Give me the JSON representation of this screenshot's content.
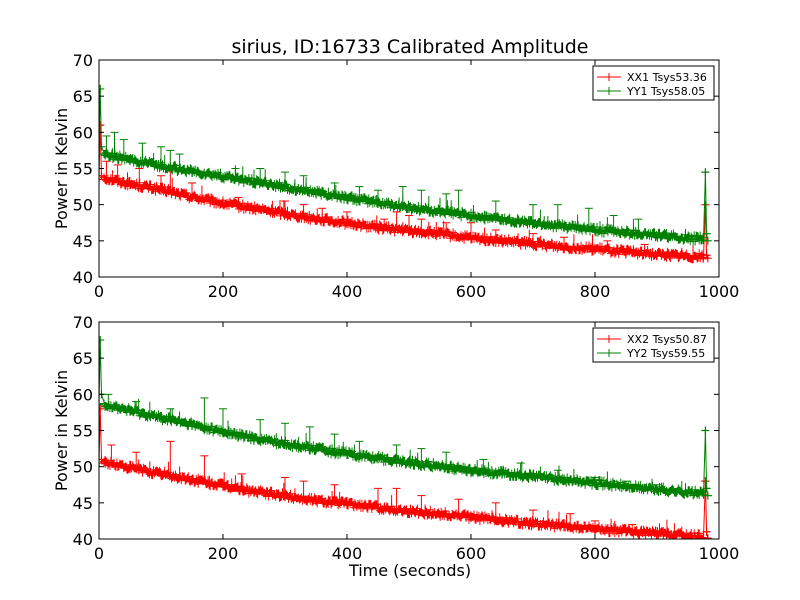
{
  "figure": {
    "title": "sirius, ID:16733 Calibrated Amplitude",
    "xlabel": "Time (seconds)"
  },
  "colors": {
    "red": "#ff0000",
    "green": "#008000"
  },
  "chart_data": [
    {
      "type": "line",
      "title": "sirius, ID:16733 Calibrated Amplitude",
      "xlabel": "",
      "ylabel": "Power in Kelvin",
      "xlim": [
        0,
        1000
      ],
      "ylim": [
        40,
        70
      ],
      "xticks": [
        0,
        200,
        400,
        600,
        800,
        1000
      ],
      "yticks": [
        40,
        45,
        50,
        55,
        60,
        65,
        70
      ],
      "legend_position": "top-right",
      "series": [
        {
          "name": "XX1 Tsys53.36",
          "color": "#ff0000",
          "marker": "+",
          "x": [
            0,
            2,
            4,
            10,
            50,
            100,
            150,
            200,
            250,
            300,
            350,
            400,
            450,
            500,
            550,
            600,
            650,
            700,
            750,
            800,
            850,
            900,
            950,
            975,
            978,
            980,
            982
          ],
          "y": [
            53.5,
            61,
            54,
            53.5,
            52.7,
            51.9,
            50.9,
            50.0,
            49.3,
            48.6,
            47.9,
            47.3,
            46.7,
            46.2,
            45.8,
            45.2,
            44.8,
            44.4,
            44.0,
            43.7,
            43.3,
            43.0,
            42.7,
            42.7,
            50,
            43,
            42.6
          ],
          "spikes": [
            [
              12,
              56
            ],
            [
              30,
              55.5
            ],
            [
              65,
              55
            ],
            [
              100,
              54
            ],
            [
              115,
              55
            ],
            [
              150,
              53
            ],
            [
              225,
              51
            ],
            [
              300,
              50.5
            ],
            [
              330,
              50
            ],
            [
              360,
              49.5
            ],
            [
              400,
              49
            ],
            [
              460,
              48
            ],
            [
              480,
              49
            ],
            [
              500,
              48.5
            ],
            [
              520,
              48
            ],
            [
              560,
              47.5
            ],
            [
              600,
              47.5
            ],
            [
              640,
              46.5
            ],
            [
              700,
              46
            ],
            [
              750,
              45.5
            ],
            [
              820,
              45
            ],
            [
              880,
              44.5
            ]
          ]
        },
        {
          "name": "YY1 Tsys58.05",
          "color": "#008000",
          "marker": "+",
          "x": [
            0,
            2,
            4,
            10,
            50,
            100,
            150,
            200,
            250,
            300,
            350,
            400,
            450,
            500,
            550,
            600,
            650,
            700,
            750,
            800,
            850,
            900,
            950,
            975,
            978,
            980,
            982
          ],
          "y": [
            57,
            66,
            58,
            56.8,
            56.0,
            55.2,
            54.4,
            53.7,
            53.0,
            52.3,
            51.5,
            50.8,
            50.1,
            49.4,
            48.9,
            48.3,
            47.8,
            47.3,
            46.8,
            46.3,
            46.0,
            45.6,
            45.2,
            45.1,
            54.5,
            46,
            45.0
          ],
          "spikes": [
            [
              12,
              59.5
            ],
            [
              25,
              60
            ],
            [
              40,
              59
            ],
            [
              70,
              58.5
            ],
            [
              100,
              58
            ],
            [
              115,
              57.5
            ],
            [
              130,
              57
            ],
            [
              220,
              55
            ],
            [
              260,
              55
            ],
            [
              300,
              54.5
            ],
            [
              330,
              54
            ],
            [
              380,
              53
            ],
            [
              420,
              52.5
            ],
            [
              450,
              52
            ],
            [
              490,
              52.5
            ],
            [
              520,
              52
            ],
            [
              560,
              51.5
            ],
            [
              580,
              52
            ],
            [
              640,
              50.5
            ],
            [
              700,
              50
            ],
            [
              740,
              50
            ],
            [
              790,
              49.5
            ],
            [
              830,
              48.5
            ],
            [
              870,
              48
            ]
          ]
        }
      ]
    },
    {
      "type": "line",
      "title": "",
      "xlabel": "Time (seconds)",
      "ylabel": "Power in Kelvin",
      "xlim": [
        0,
        1000
      ],
      "ylim": [
        40,
        70
      ],
      "xticks": [
        0,
        200,
        400,
        600,
        800,
        1000
      ],
      "yticks": [
        40,
        45,
        50,
        55,
        60,
        65,
        70
      ],
      "legend_position": "top-right",
      "series": [
        {
          "name": "XX2 Tsys50.87",
          "color": "#ff0000",
          "marker": "+",
          "x": [
            0,
            2,
            4,
            10,
            50,
            100,
            150,
            200,
            250,
            300,
            350,
            400,
            450,
            500,
            550,
            600,
            650,
            700,
            750,
            800,
            850,
            900,
            950,
            975,
            978,
            980,
            982
          ],
          "y": [
            50.5,
            58,
            51,
            50.4,
            49.7,
            48.8,
            48.0,
            47.2,
            46.4,
            45.8,
            45.2,
            44.7,
            44.2,
            43.7,
            43.3,
            42.9,
            42.4,
            42.0,
            41.6,
            41.2,
            40.9,
            40.6,
            40.3,
            40.2,
            48,
            41,
            40.1
          ],
          "spikes": [
            [
              20,
              53
            ],
            [
              60,
              52
            ],
            [
              115,
              53.5
            ],
            [
              170,
              51.5
            ],
            [
              230,
              49
            ],
            [
              300,
              48.5
            ],
            [
              330,
              48
            ],
            [
              380,
              47.5
            ],
            [
              450,
              47
            ],
            [
              480,
              47
            ],
            [
              520,
              46
            ],
            [
              580,
              45.5
            ],
            [
              640,
              45
            ],
            [
              700,
              44
            ],
            [
              760,
              43.5
            ],
            [
              800,
              42.5
            ],
            [
              860,
              42
            ]
          ]
        },
        {
          "name": "YY2 Tsys59.55",
          "color": "#008000",
          "marker": "+",
          "x": [
            0,
            2,
            4,
            10,
            50,
            100,
            150,
            200,
            250,
            300,
            350,
            400,
            450,
            500,
            550,
            600,
            650,
            700,
            750,
            800,
            850,
            900,
            950,
            975,
            978,
            980,
            982
          ],
          "y": [
            58.6,
            67.5,
            60,
            58.4,
            57.6,
            56.6,
            55.6,
            54.6,
            53.8,
            53.0,
            52.3,
            51.6,
            51.0,
            50.4,
            49.9,
            49.3,
            48.9,
            48.5,
            48.0,
            47.6,
            47.1,
            46.7,
            46.3,
            46.1,
            55,
            47,
            46.0
          ],
          "spikes": [
            [
              15,
              60
            ],
            [
              60,
              59
            ],
            [
              115,
              58
            ],
            [
              170,
              59.5
            ],
            [
              200,
              58
            ],
            [
              260,
              56.5
            ],
            [
              300,
              56
            ],
            [
              340,
              55.5
            ],
            [
              380,
              54.5
            ],
            [
              420,
              53.5
            ],
            [
              480,
              53
            ],
            [
              520,
              52.5
            ],
            [
              560,
              52
            ],
            [
              620,
              51
            ],
            [
              680,
              50.5
            ],
            [
              740,
              49.5
            ],
            [
              800,
              48.5
            ],
            [
              850,
              48
            ],
            [
              900,
              47.5
            ]
          ]
        }
      ]
    }
  ]
}
